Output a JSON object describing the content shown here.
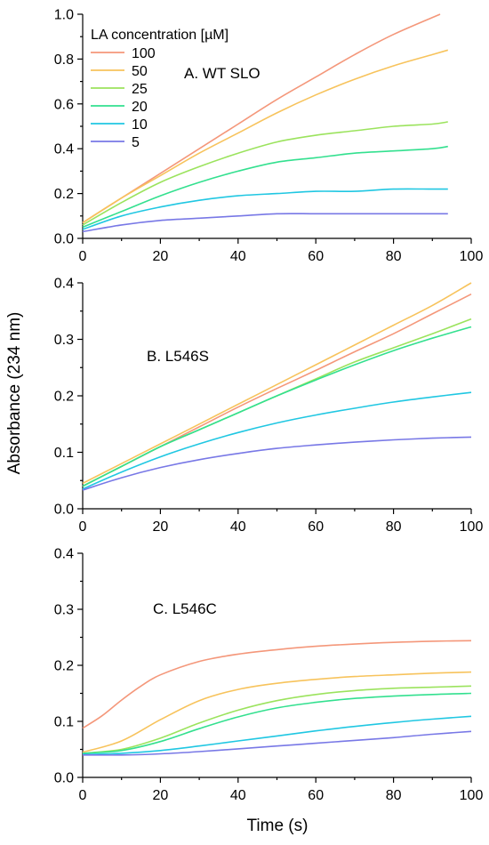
{
  "chart_data": {
    "type": "line",
    "ylabel": "Absorbance (234 nm)",
    "xlabel": "Time (s)",
    "legend": {
      "title": "LA concentration [µM]",
      "placement": "top-left",
      "entries": [
        {
          "name": "100",
          "color": "#f4977a"
        },
        {
          "name": "50",
          "color": "#f7c35c"
        },
        {
          "name": "25",
          "color": "#9be35d"
        },
        {
          "name": "20",
          "color": "#33e08f"
        },
        {
          "name": "10",
          "color": "#20c7e2"
        },
        {
          "name": "5",
          "color": "#7878e6"
        }
      ]
    },
    "panels": [
      {
        "label": "A. WT SLO",
        "xlim": [
          0,
          100
        ],
        "ylim": [
          0,
          1.0
        ],
        "xticks": [
          "0",
          "20",
          "40",
          "60",
          "80",
          "100"
        ],
        "yticks": [
          "0.0",
          "0.2",
          "0.4",
          "0.6",
          "0.8",
          "1.0"
        ],
        "show_xlabel": false,
        "show_legend": true,
        "series": [
          {
            "name": "100",
            "x": [
              0,
              10,
              20,
              30,
              40,
              50,
              60,
              70,
              80,
              92
            ],
            "y": [
              0.07,
              0.18,
              0.29,
              0.4,
              0.51,
              0.62,
              0.72,
              0.82,
              0.91,
              1.0
            ]
          },
          {
            "name": "50",
            "x": [
              0,
              10,
              20,
              30,
              40,
              50,
              60,
              70,
              80,
              90,
              94
            ],
            "y": [
              0.07,
              0.18,
              0.28,
              0.38,
              0.47,
              0.56,
              0.64,
              0.71,
              0.77,
              0.82,
              0.84
            ]
          },
          {
            "name": "25",
            "x": [
              0,
              10,
              20,
              30,
              40,
              50,
              60,
              70,
              80,
              90,
              94
            ],
            "y": [
              0.06,
              0.16,
              0.25,
              0.32,
              0.38,
              0.43,
              0.46,
              0.48,
              0.5,
              0.51,
              0.52
            ]
          },
          {
            "name": "20",
            "x": [
              0,
              10,
              20,
              30,
              40,
              50,
              60,
              70,
              80,
              90,
              94
            ],
            "y": [
              0.05,
              0.12,
              0.19,
              0.25,
              0.3,
              0.34,
              0.36,
              0.38,
              0.39,
              0.4,
              0.41
            ]
          },
          {
            "name": "10",
            "x": [
              0,
              10,
              20,
              30,
              40,
              50,
              60,
              70,
              80,
              90,
              94
            ],
            "y": [
              0.04,
              0.1,
              0.14,
              0.17,
              0.19,
              0.2,
              0.21,
              0.21,
              0.22,
              0.22,
              0.22
            ]
          },
          {
            "name": "5",
            "x": [
              0,
              10,
              20,
              30,
              40,
              50,
              60,
              70,
              80,
              90,
              94
            ],
            "y": [
              0.03,
              0.06,
              0.08,
              0.09,
              0.1,
              0.11,
              0.11,
              0.11,
              0.11,
              0.11,
              0.11
            ]
          }
        ]
      },
      {
        "label": "B. L546S",
        "xlim": [
          0,
          100
        ],
        "ylim": [
          0,
          0.4
        ],
        "xticks": [
          "0",
          "20",
          "40",
          "60",
          "80",
          "100"
        ],
        "yticks": [
          "0.0",
          "0.1",
          "0.2",
          "0.3",
          "0.4"
        ],
        "show_xlabel": false,
        "show_legend": false,
        "series": [
          {
            "name": "50",
            "x": [
              0,
              10,
              20,
              30,
              40,
              50,
              60,
              70,
              80,
              90,
              100
            ],
            "y": [
              0.045,
              0.08,
              0.115,
              0.15,
              0.185,
              0.22,
              0.255,
              0.29,
              0.325,
              0.36,
              0.4
            ]
          },
          {
            "name": "100",
            "x": [
              0,
              10,
              20,
              30,
              40,
              50,
              60,
              70,
              80,
              90,
              100
            ],
            "y": [
              0.04,
              0.075,
              0.11,
              0.145,
              0.18,
              0.213,
              0.245,
              0.278,
              0.31,
              0.345,
              0.38
            ]
          },
          {
            "name": "25",
            "x": [
              0,
              10,
              20,
              30,
              40,
              50,
              60,
              70,
              80,
              90,
              100
            ],
            "y": [
              0.04,
              0.075,
              0.11,
              0.14,
              0.17,
              0.2,
              0.23,
              0.26,
              0.285,
              0.31,
              0.336
            ]
          },
          {
            "name": "20",
            "x": [
              0,
              10,
              20,
              30,
              40,
              50,
              60,
              70,
              80,
              90,
              100
            ],
            "y": [
              0.04,
              0.075,
              0.11,
              0.14,
              0.17,
              0.2,
              0.228,
              0.255,
              0.28,
              0.302,
              0.322
            ]
          },
          {
            "name": "10",
            "x": [
              0,
              10,
              20,
              30,
              40,
              50,
              60,
              70,
              80,
              90,
              100
            ],
            "y": [
              0.035,
              0.065,
              0.092,
              0.115,
              0.135,
              0.152,
              0.166,
              0.178,
              0.189,
              0.198,
              0.206
            ]
          },
          {
            "name": "5",
            "x": [
              0,
              10,
              20,
              30,
              40,
              50,
              60,
              70,
              80,
              90,
              100
            ],
            "y": [
              0.033,
              0.055,
              0.073,
              0.087,
              0.098,
              0.107,
              0.113,
              0.118,
              0.122,
              0.125,
              0.127
            ]
          }
        ]
      },
      {
        "label": "C. L546C",
        "xlim": [
          0,
          100
        ],
        "ylim": [
          0,
          0.4
        ],
        "xticks": [
          "0",
          "20",
          "40",
          "60",
          "80",
          "100"
        ],
        "yticks": [
          "0.0",
          "0.1",
          "0.2",
          "0.3",
          "0.4"
        ],
        "show_xlabel": true,
        "show_legend": false,
        "series": [
          {
            "name": "100",
            "x": [
              0,
              5,
              10,
              15,
              20,
              30,
              40,
              50,
              60,
              70,
              80,
              90,
              100
            ],
            "y": [
              0.088,
              0.11,
              0.138,
              0.163,
              0.183,
              0.207,
              0.22,
              0.228,
              0.234,
              0.238,
              0.241,
              0.243,
              0.244
            ]
          },
          {
            "name": "50",
            "x": [
              0,
              10,
              20,
              30,
              40,
              50,
              60,
              70,
              80,
              90,
              100
            ],
            "y": [
              0.045,
              0.065,
              0.103,
              0.137,
              0.157,
              0.168,
              0.175,
              0.18,
              0.183,
              0.186,
              0.188
            ]
          },
          {
            "name": "25",
            "x": [
              0,
              10,
              20,
              30,
              40,
              50,
              60,
              70,
              80,
              90,
              100
            ],
            "y": [
              0.043,
              0.05,
              0.07,
              0.097,
              0.12,
              0.137,
              0.148,
              0.155,
              0.159,
              0.161,
              0.163
            ]
          },
          {
            "name": "20",
            "x": [
              0,
              10,
              20,
              30,
              40,
              50,
              60,
              70,
              80,
              90,
              100
            ],
            "y": [
              0.043,
              0.048,
              0.064,
              0.087,
              0.108,
              0.124,
              0.134,
              0.141,
              0.145,
              0.148,
              0.15
            ]
          },
          {
            "name": "10",
            "x": [
              0,
              10,
              20,
              30,
              40,
              50,
              60,
              70,
              80,
              90,
              100
            ],
            "y": [
              0.041,
              0.043,
              0.048,
              0.056,
              0.065,
              0.074,
              0.083,
              0.091,
              0.098,
              0.104,
              0.109
            ]
          },
          {
            "name": "5",
            "x": [
              0,
              10,
              20,
              30,
              40,
              50,
              60,
              70,
              80,
              90,
              100
            ],
            "y": [
              0.04,
              0.04,
              0.042,
              0.046,
              0.051,
              0.056,
              0.061,
              0.066,
              0.071,
              0.077,
              0.082
            ]
          }
        ]
      }
    ]
  }
}
